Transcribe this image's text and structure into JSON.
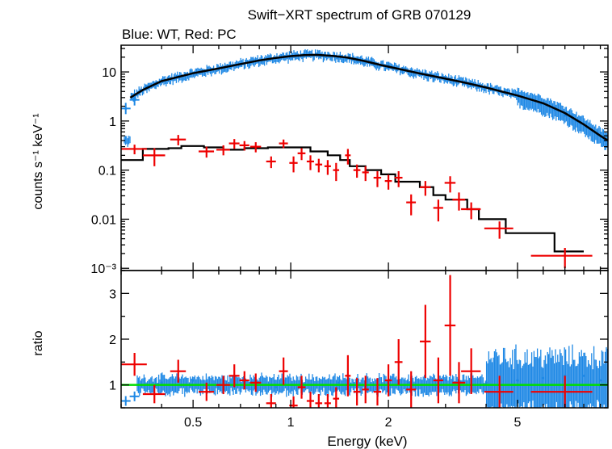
{
  "chart_data": {
    "type": "scatter",
    "title": "Swift−XRT spectrum of GRB 070129",
    "subtitle": "Blue: WT, Red: PC",
    "xlabel": "Energy (keV)",
    "x_scale": "log",
    "xlim": [
      0.3,
      9.5
    ],
    "x_ticks": [
      {
        "v": 0.5,
        "label": "0.5"
      },
      {
        "v": 1,
        "label": "1"
      },
      {
        "v": 2,
        "label": "2"
      },
      {
        "v": 5,
        "label": "5"
      }
    ],
    "panels": {
      "spectrum": {
        "ylabel": "counts s⁻¹ keV⁻¹",
        "y_scale": "log",
        "ylim": [
          0.0009,
          35
        ],
        "y_ticks": [
          {
            "v": 10,
            "label": "10"
          },
          {
            "v": 1,
            "label": "1"
          },
          {
            "v": 0.1,
            "label": "0.1"
          },
          {
            "v": 0.01,
            "label": "0.01"
          },
          {
            "v": 0.001,
            "label": "10⁻³"
          }
        ]
      },
      "ratio": {
        "ylabel": "ratio",
        "y_scale": "linear",
        "ylim": [
          0.5,
          3.5
        ],
        "y_ticks": [
          {
            "v": 1,
            "label": "1"
          },
          {
            "v": 2,
            "label": "2"
          },
          {
            "v": 3,
            "label": "3"
          }
        ],
        "reference_line": 1.0
      }
    },
    "colors": {
      "wt": "#1e88e5",
      "pc": "#ee0000",
      "model": "#000000",
      "ref_line": "#00dd00"
    },
    "wt_model": [
      [
        0.32,
        3.0
      ],
      [
        0.35,
        4.3
      ],
      [
        0.4,
        6.5
      ],
      [
        0.5,
        9.4
      ],
      [
        0.6,
        11.8
      ],
      [
        0.7,
        14.5
      ],
      [
        0.8,
        17.2
      ],
      [
        0.9,
        19.3
      ],
      [
        1.0,
        21.0
      ],
      [
        1.1,
        22.0
      ],
      [
        1.2,
        22.3
      ],
      [
        1.35,
        21.2
      ],
      [
        1.5,
        19.5
      ],
      [
        1.7,
        16.5
      ],
      [
        1.9,
        13.8
      ],
      [
        2.2,
        11.2
      ],
      [
        2.5,
        9.3
      ],
      [
        3.0,
        7.3
      ],
      [
        3.5,
        5.9
      ],
      [
        4.0,
        4.8
      ],
      [
        5.0,
        3.3
      ],
      [
        6.0,
        2.3
      ],
      [
        7.0,
        1.45
      ],
      [
        8.0,
        0.85
      ],
      [
        9.0,
        0.5
      ],
      [
        9.5,
        0.4
      ]
    ],
    "wt_spectrum_points": [
      {
        "x": 0.31,
        "y": 1.8
      },
      {
        "x": 0.33,
        "y": 2.7
      },
      {
        "x": 0.36,
        "y": 5.0
      },
      {
        "x": 0.4,
        "y": 6.8
      },
      {
        "x": 0.45,
        "y": 8.2
      },
      {
        "x": 0.5,
        "y": 9.5
      },
      {
        "x": 0.55,
        "y": 10.5
      },
      {
        "x": 0.6,
        "y": 11.5
      },
      {
        "x": 0.65,
        "y": 12.5
      },
      {
        "x": 0.7,
        "y": 14.5
      },
      {
        "x": 0.75,
        "y": 16.0
      },
      {
        "x": 0.8,
        "y": 17.5
      },
      {
        "x": 0.85,
        "y": 18.5
      },
      {
        "x": 0.9,
        "y": 19.5
      },
      {
        "x": 1.0,
        "y": 21.0
      },
      {
        "x": 1.1,
        "y": 23.0
      },
      {
        "x": 1.2,
        "y": 22.0
      },
      {
        "x": 1.3,
        "y": 21.5
      },
      {
        "x": 1.4,
        "y": 20.0
      },
      {
        "x": 1.5,
        "y": 19.0
      },
      {
        "x": 1.6,
        "y": 17.0
      },
      {
        "x": 1.7,
        "y": 16.0
      },
      {
        "x": 1.8,
        "y": 14.0
      },
      {
        "x": 2.0,
        "y": 13.0
      },
      {
        "x": 2.2,
        "y": 11.0
      },
      {
        "x": 2.4,
        "y": 10.0
      },
      {
        "x": 2.7,
        "y": 8.5
      },
      {
        "x": 3.0,
        "y": 7.0
      },
      {
        "x": 3.4,
        "y": 6.0
      },
      {
        "x": 3.8,
        "y": 5.0
      },
      {
        "x": 4.3,
        "y": 4.2
      },
      {
        "x": 4.8,
        "y": 3.4
      },
      {
        "x": 5.3,
        "y": 2.9
      },
      {
        "x": 5.9,
        "y": 2.2
      },
      {
        "x": 6.5,
        "y": 1.7
      },
      {
        "x": 7.0,
        "y": 1.3
      },
      {
        "x": 7.6,
        "y": 1.0
      },
      {
        "x": 8.2,
        "y": 0.75
      },
      {
        "x": 8.8,
        "y": 0.55
      },
      {
        "x": 9.3,
        "y": 0.4
      }
    ],
    "pc_model": [
      [
        0.3,
        0.16
      ],
      [
        0.35,
        0.27
      ],
      [
        0.42,
        0.28
      ],
      [
        0.46,
        0.31
      ],
      [
        0.54,
        0.29
      ],
      [
        0.62,
        0.26
      ],
      [
        0.72,
        0.28
      ],
      [
        0.85,
        0.29
      ],
      [
        1.0,
        0.29
      ],
      [
        1.15,
        0.24
      ],
      [
        1.3,
        0.2
      ],
      [
        1.42,
        0.16
      ],
      [
        1.52,
        0.12
      ],
      [
        1.7,
        0.1
      ],
      [
        1.9,
        0.082
      ],
      [
        2.1,
        0.058
      ],
      [
        2.5,
        0.045
      ],
      [
        2.75,
        0.031
      ],
      [
        3.0,
        0.025
      ],
      [
        3.5,
        0.016
      ],
      [
        3.8,
        0.01
      ],
      [
        4.6,
        0.0052
      ],
      [
        5.5,
        0.0052
      ],
      [
        6.5,
        0.0022
      ],
      [
        8.0,
        0.0022
      ]
    ],
    "pc_spectrum_points": [
      {
        "x": 0.33,
        "y": 0.27,
        "xerr": 0.03,
        "yerr": 0.06
      },
      {
        "x": 0.38,
        "y": 0.2,
        "xerr": 0.03,
        "yerr": 0.08
      },
      {
        "x": 0.45,
        "y": 0.42,
        "xerr": 0.025,
        "yerr": 0.1
      },
      {
        "x": 0.55,
        "y": 0.24,
        "xerr": 0.03,
        "yerr": 0.06
      },
      {
        "x": 0.62,
        "y": 0.26,
        "xerr": 0.03,
        "yerr": 0.06
      },
      {
        "x": 0.67,
        "y": 0.35,
        "xerr": 0.025,
        "yerr": 0.08
      },
      {
        "x": 0.72,
        "y": 0.32,
        "xerr": 0.025,
        "yerr": 0.07
      },
      {
        "x": 0.78,
        "y": 0.3,
        "xerr": 0.03,
        "yerr": 0.07
      },
      {
        "x": 0.87,
        "y": 0.15,
        "xerr": 0.03,
        "yerr": 0.04
      },
      {
        "x": 0.95,
        "y": 0.35,
        "xerr": 0.03,
        "yerr": 0.07
      },
      {
        "x": 1.02,
        "y": 0.14,
        "xerr": 0.03,
        "yerr": 0.05
      },
      {
        "x": 1.08,
        "y": 0.22,
        "xerr": 0.03,
        "yerr": 0.06
      },
      {
        "x": 1.15,
        "y": 0.15,
        "xerr": 0.03,
        "yerr": 0.05
      },
      {
        "x": 1.22,
        "y": 0.13,
        "xerr": 0.03,
        "yerr": 0.04
      },
      {
        "x": 1.3,
        "y": 0.12,
        "xerr": 0.03,
        "yerr": 0.04
      },
      {
        "x": 1.38,
        "y": 0.1,
        "xerr": 0.03,
        "yerr": 0.04
      },
      {
        "x": 1.5,
        "y": 0.2,
        "xerr": 0.03,
        "yerr": 0.07
      },
      {
        "x": 1.6,
        "y": 0.1,
        "xerr": 0.04,
        "yerr": 0.03
      },
      {
        "x": 1.7,
        "y": 0.09,
        "xerr": 0.04,
        "yerr": 0.03
      },
      {
        "x": 1.85,
        "y": 0.07,
        "xerr": 0.05,
        "yerr": 0.025
      },
      {
        "x": 2.0,
        "y": 0.06,
        "xerr": 0.05,
        "yerr": 0.02
      },
      {
        "x": 2.15,
        "y": 0.07,
        "xerr": 0.06,
        "yerr": 0.025
      },
      {
        "x": 2.35,
        "y": 0.022,
        "xerr": 0.08,
        "yerr": 0.01
      },
      {
        "x": 2.6,
        "y": 0.045,
        "xerr": 0.1,
        "yerr": 0.015
      },
      {
        "x": 2.85,
        "y": 0.017,
        "xerr": 0.1,
        "yerr": 0.008
      },
      {
        "x": 3.1,
        "y": 0.055,
        "xerr": 0.12,
        "yerr": 0.02
      },
      {
        "x": 3.3,
        "y": 0.025,
        "xerr": 0.15,
        "yerr": 0.01
      },
      {
        "x": 3.6,
        "y": 0.016,
        "xerr": 0.25,
        "yerr": 0.006
      },
      {
        "x": 4.4,
        "y": 0.0065,
        "xerr": 0.45,
        "yerr": 0.0025
      },
      {
        "x": 7.0,
        "y": 0.0018,
        "xerr": 1.5,
        "yerr": 0.0008
      }
    ],
    "wt_ratio_points": [
      {
        "x": 0.31,
        "y": 0.65
      },
      {
        "x": 0.33,
        "y": 0.75
      },
      {
        "x": 0.4,
        "y": 1.05
      },
      {
        "x": 0.5,
        "y": 1.1
      },
      {
        "x": 0.6,
        "y": 0.95
      },
      {
        "x": 0.75,
        "y": 1.05
      },
      {
        "x": 0.9,
        "y": 0.95
      },
      {
        "x": 1.1,
        "y": 1.0
      },
      {
        "x": 1.4,
        "y": 1.05
      },
      {
        "x": 1.8,
        "y": 1.0
      },
      {
        "x": 2.3,
        "y": 1.05
      },
      {
        "x": 3.0,
        "y": 1.1
      },
      {
        "x": 4.0,
        "y": 1.05
      },
      {
        "x": 5.0,
        "y": 1.1
      },
      {
        "x": 6.0,
        "y": 1.15
      },
      {
        "x": 7.0,
        "y": 1.2
      },
      {
        "x": 8.0,
        "y": 1.2
      },
      {
        "x": 9.0,
        "y": 1.1
      }
    ],
    "pc_ratio_points": [
      {
        "x": 0.33,
        "y": 1.45,
        "xerr": 0.03,
        "yerr": 0.25
      },
      {
        "x": 0.38,
        "y": 0.8,
        "xerr": 0.03,
        "yerr": 0.2
      },
      {
        "x": 0.45,
        "y": 1.3,
        "xerr": 0.025,
        "yerr": 0.25
      },
      {
        "x": 0.55,
        "y": 0.85,
        "xerr": 0.03,
        "yerr": 0.2
      },
      {
        "x": 0.62,
        "y": 1.0,
        "xerr": 0.03,
        "yerr": 0.2
      },
      {
        "x": 0.67,
        "y": 1.2,
        "xerr": 0.025,
        "yerr": 0.25
      },
      {
        "x": 0.72,
        "y": 1.1,
        "xerr": 0.025,
        "yerr": 0.2
      },
      {
        "x": 0.78,
        "y": 1.05,
        "xerr": 0.03,
        "yerr": 0.2
      },
      {
        "x": 0.87,
        "y": 0.6,
        "xerr": 0.03,
        "yerr": 0.2
      },
      {
        "x": 0.95,
        "y": 1.3,
        "xerr": 0.03,
        "yerr": 0.3
      },
      {
        "x": 1.02,
        "y": 0.55,
        "xerr": 0.03,
        "yerr": 0.2
      },
      {
        "x": 1.08,
        "y": 0.95,
        "xerr": 0.03,
        "yerr": 0.25
      },
      {
        "x": 1.15,
        "y": 0.65,
        "xerr": 0.03,
        "yerr": 0.2
      },
      {
        "x": 1.22,
        "y": 0.6,
        "xerr": 0.03,
        "yerr": 0.2
      },
      {
        "x": 1.3,
        "y": 0.6,
        "xerr": 0.03,
        "yerr": 0.2
      },
      {
        "x": 1.38,
        "y": 0.7,
        "xerr": 0.03,
        "yerr": 0.25
      },
      {
        "x": 1.5,
        "y": 1.2,
        "xerr": 0.03,
        "yerr": 0.45
      },
      {
        "x": 1.6,
        "y": 0.85,
        "xerr": 0.04,
        "yerr": 0.3
      },
      {
        "x": 1.7,
        "y": 0.9,
        "xerr": 0.04,
        "yerr": 0.3
      },
      {
        "x": 1.85,
        "y": 0.85,
        "xerr": 0.05,
        "yerr": 0.3
      },
      {
        "x": 2.0,
        "y": 1.1,
        "xerr": 0.05,
        "yerr": 0.35
      },
      {
        "x": 2.15,
        "y": 1.5,
        "xerr": 0.06,
        "yerr": 0.5
      },
      {
        "x": 2.35,
        "y": 0.9,
        "xerr": 0.08,
        "yerr": 0.4
      },
      {
        "x": 2.6,
        "y": 1.95,
        "xerr": 0.1,
        "yerr": 0.8
      },
      {
        "x": 2.85,
        "y": 1.1,
        "xerr": 0.1,
        "yerr": 0.5
      },
      {
        "x": 3.1,
        "y": 2.3,
        "xerr": 0.12,
        "yerr": 1.1
      },
      {
        "x": 3.3,
        "y": 1.05,
        "xerr": 0.15,
        "yerr": 0.45
      },
      {
        "x": 3.6,
        "y": 1.3,
        "xerr": 0.25,
        "yerr": 0.5
      },
      {
        "x": 4.4,
        "y": 0.85,
        "xerr": 0.45,
        "yerr": 0.35
      },
      {
        "x": 7.0,
        "y": 0.85,
        "xerr": 1.5,
        "yerr": 0.35
      }
    ]
  }
}
